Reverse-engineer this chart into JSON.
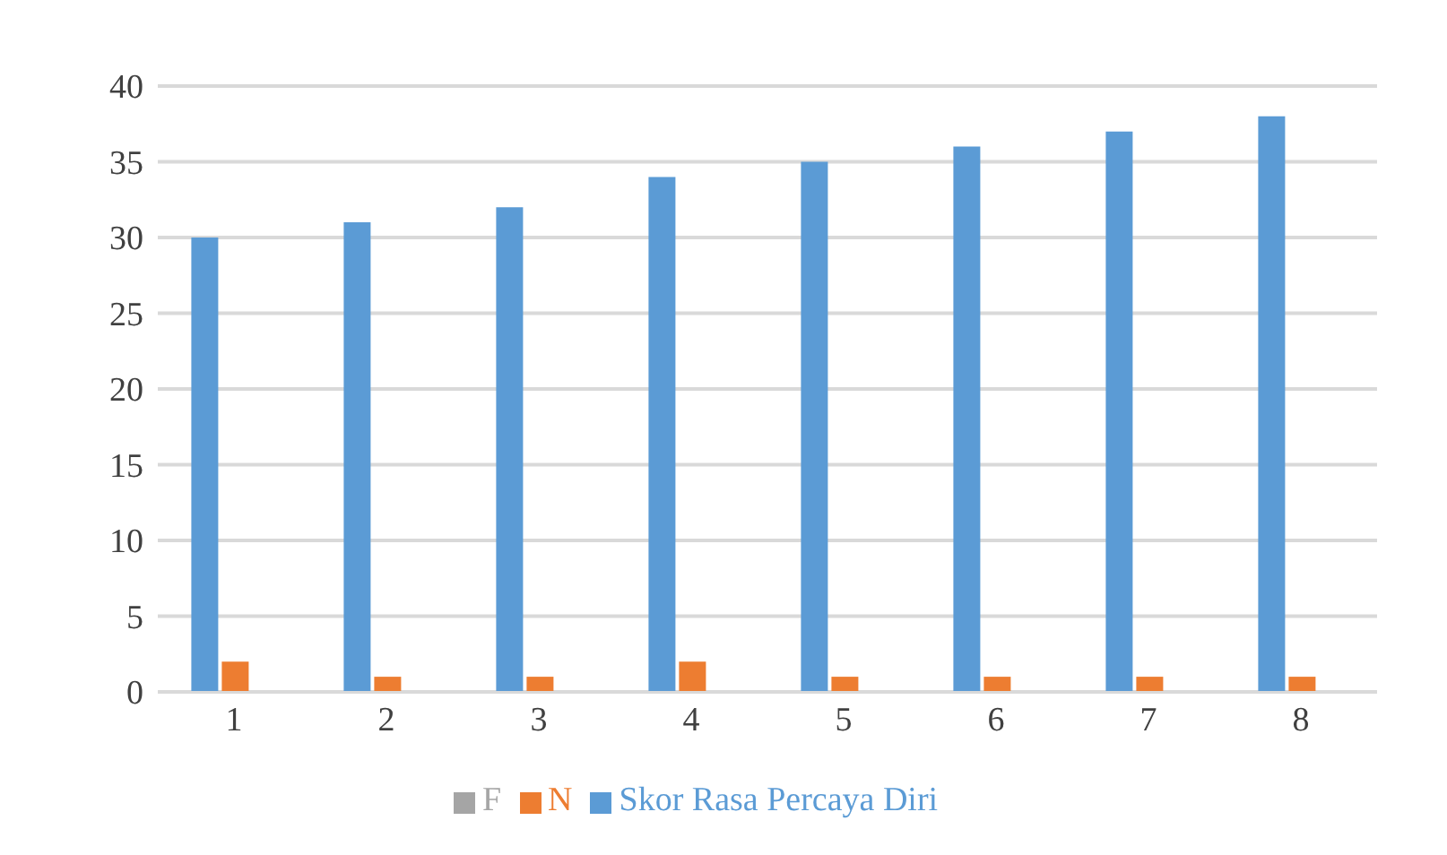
{
  "chart_data": {
    "type": "bar",
    "categories": [
      "1",
      "2",
      "3",
      "4",
      "5",
      "6",
      "7",
      "8"
    ],
    "series": [
      {
        "name": "Skor Rasa Percaya Diri",
        "color": "#5b9bd5",
        "values": [
          30,
          31,
          32,
          34,
          35,
          36,
          37,
          38
        ]
      },
      {
        "name": "N",
        "color": "#ed7d31",
        "values": [
          2,
          1,
          1,
          2,
          1,
          1,
          1,
          1
        ]
      },
      {
        "name": "F",
        "color": "#a5a5a5",
        "values": [
          0,
          0,
          0,
          0,
          0,
          0,
          0,
          0
        ]
      }
    ],
    "ylim": [
      0,
      40
    ],
    "yticks": [
      0,
      5,
      10,
      15,
      20,
      25,
      30,
      35,
      40
    ],
    "grid": "y",
    "legend": "bottom"
  }
}
